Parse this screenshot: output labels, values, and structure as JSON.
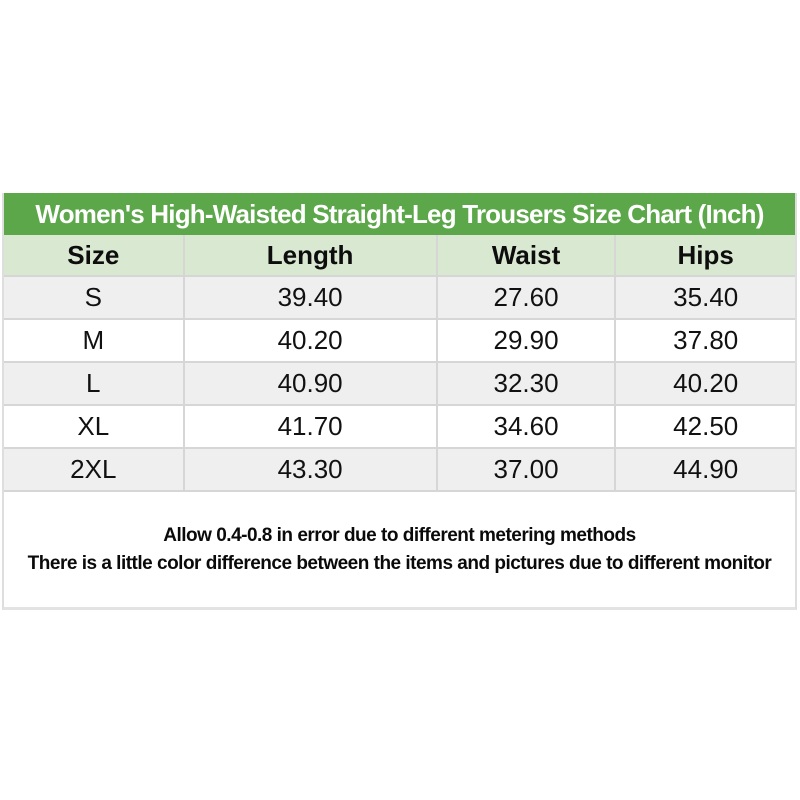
{
  "chart_data": {
    "type": "table",
    "title": "Women's High-Waisted Straight-Leg Trousers Size Chart (Inch)",
    "columns": [
      "Size",
      "Length",
      "Waist",
      "Hips"
    ],
    "rows": [
      [
        "S",
        "39.40",
        "27.60",
        "35.40"
      ],
      [
        "M",
        "40.20",
        "29.90",
        "37.80"
      ],
      [
        "L",
        "40.90",
        "32.30",
        "40.20"
      ],
      [
        "XL",
        "41.70",
        "34.60",
        "42.50"
      ],
      [
        "2XL",
        "43.30",
        "37.00",
        "44.90"
      ]
    ],
    "notes": [
      "Allow 0.4-0.8 in error due to different metering methods",
      "There is a little color difference between the items and pictures due to different monitor"
    ],
    "layout": {
      "grid": "on",
      "zebra_striping": true,
      "title_position": "top"
    }
  },
  "colors": {
    "title_bg": "#5ca74a",
    "title_text": "#ffffff",
    "header_bg": "#d9e8d1",
    "row_alt_bg": "#efefef",
    "row_bg": "#ffffff",
    "border": "#d6d6d6",
    "text": "#111111"
  }
}
